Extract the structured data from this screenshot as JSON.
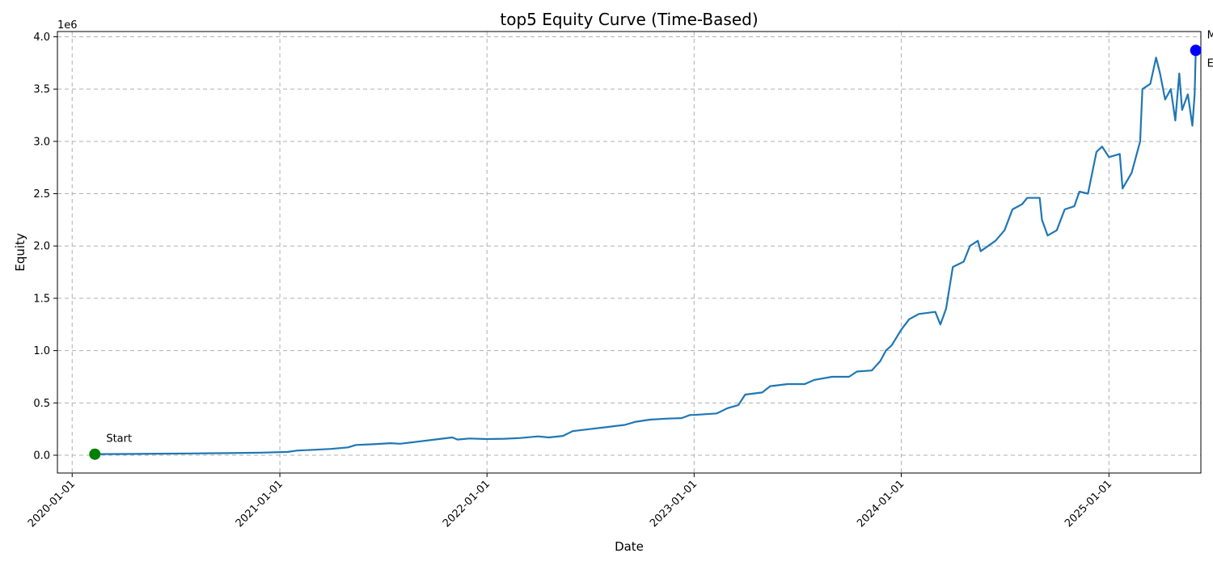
{
  "chart_data": {
    "type": "line",
    "title": "top5 Equity Curve (Time-Based)",
    "xlabel": "Date",
    "ylabel": "Equity",
    "y_offset_label": "1e6",
    "y_scale_factor": 1000000,
    "xlim": [
      "2019-12-06",
      "2025-06-12"
    ],
    "ylim": [
      -170000,
      4050000
    ],
    "grid": true,
    "x_ticks": [
      "2020-01-01",
      "2021-01-01",
      "2022-01-01",
      "2023-01-01",
      "2024-01-01",
      "2025-01-01"
    ],
    "y_ticks": [
      0.0,
      0.5,
      1.0,
      1.5,
      2.0,
      2.5,
      3.0,
      3.5,
      4.0
    ],
    "series": [
      {
        "color": "#1f77b4",
        "points": [
          [
            "2020-02-10",
            10000
          ],
          [
            "2020-04-01",
            12000
          ],
          [
            "2020-06-01",
            15000
          ],
          [
            "2020-08-01",
            17000
          ],
          [
            "2020-10-01",
            20000
          ],
          [
            "2020-12-01",
            25000
          ],
          [
            "2021-01-15",
            32000
          ],
          [
            "2021-02-01",
            45000
          ],
          [
            "2021-03-01",
            52000
          ],
          [
            "2021-04-01",
            60000
          ],
          [
            "2021-05-01",
            75000
          ],
          [
            "2021-05-15",
            98000
          ],
          [
            "2021-06-15",
            105000
          ],
          [
            "2021-07-15",
            115000
          ],
          [
            "2021-08-01",
            110000
          ],
          [
            "2021-09-01",
            130000
          ],
          [
            "2021-10-01",
            150000
          ],
          [
            "2021-11-01",
            170000
          ],
          [
            "2021-11-10",
            150000
          ],
          [
            "2021-12-01",
            160000
          ],
          [
            "2022-01-01",
            155000
          ],
          [
            "2022-02-01",
            158000
          ],
          [
            "2022-03-01",
            165000
          ],
          [
            "2022-04-01",
            180000
          ],
          [
            "2022-04-20",
            170000
          ],
          [
            "2022-05-15",
            185000
          ],
          [
            "2022-06-01",
            230000
          ],
          [
            "2022-07-01",
            250000
          ],
          [
            "2022-08-01",
            270000
          ],
          [
            "2022-09-01",
            290000
          ],
          [
            "2022-09-20",
            320000
          ],
          [
            "2022-10-15",
            340000
          ],
          [
            "2022-11-15",
            350000
          ],
          [
            "2022-12-10",
            355000
          ],
          [
            "2022-12-25",
            385000
          ],
          [
            "2023-01-01",
            385000
          ],
          [
            "2023-02-10",
            400000
          ],
          [
            "2023-03-01",
            450000
          ],
          [
            "2023-03-20",
            480000
          ],
          [
            "2023-04-01",
            580000
          ],
          [
            "2023-05-01",
            600000
          ],
          [
            "2023-05-15",
            660000
          ],
          [
            "2023-06-15",
            680000
          ],
          [
            "2023-07-15",
            680000
          ],
          [
            "2023-08-01",
            720000
          ],
          [
            "2023-09-01",
            750000
          ],
          [
            "2023-10-01",
            750000
          ],
          [
            "2023-10-15",
            800000
          ],
          [
            "2023-11-10",
            810000
          ],
          [
            "2023-11-25",
            900000
          ],
          [
            "2023-12-05",
            1000000
          ],
          [
            "2023-12-15",
            1050000
          ],
          [
            "2024-01-01",
            1200000
          ],
          [
            "2024-01-15",
            1300000
          ],
          [
            "2024-02-01",
            1350000
          ],
          [
            "2024-03-01",
            1370000
          ],
          [
            "2024-03-10",
            1250000
          ],
          [
            "2024-03-20",
            1400000
          ],
          [
            "2024-04-01",
            1800000
          ],
          [
            "2024-04-20",
            1850000
          ],
          [
            "2024-05-01",
            2000000
          ],
          [
            "2024-05-15",
            2050000
          ],
          [
            "2024-05-20",
            1950000
          ],
          [
            "2024-06-15",
            2050000
          ],
          [
            "2024-07-01",
            2150000
          ],
          [
            "2024-07-15",
            2350000
          ],
          [
            "2024-08-01",
            2400000
          ],
          [
            "2024-08-10",
            2460000
          ],
          [
            "2024-09-01",
            2460000
          ],
          [
            "2024-09-05",
            2250000
          ],
          [
            "2024-09-15",
            2100000
          ],
          [
            "2024-10-01",
            2150000
          ],
          [
            "2024-10-15",
            2350000
          ],
          [
            "2024-11-01",
            2380000
          ],
          [
            "2024-11-10",
            2520000
          ],
          [
            "2024-11-25",
            2500000
          ],
          [
            "2024-12-10",
            2900000
          ],
          [
            "2024-12-20",
            2950000
          ],
          [
            "2025-01-01",
            2850000
          ],
          [
            "2025-01-20",
            2880000
          ],
          [
            "2025-01-25",
            2550000
          ],
          [
            "2025-02-10",
            2700000
          ],
          [
            "2025-02-25",
            3000000
          ],
          [
            "2025-03-01",
            3500000
          ],
          [
            "2025-03-15",
            3550000
          ],
          [
            "2025-03-25",
            3800000
          ],
          [
            "2025-04-01",
            3650000
          ],
          [
            "2025-04-10",
            3400000
          ],
          [
            "2025-04-20",
            3500000
          ],
          [
            "2025-04-28",
            3200000
          ],
          [
            "2025-05-05",
            3650000
          ],
          [
            "2025-05-10",
            3300000
          ],
          [
            "2025-05-20",
            3450000
          ],
          [
            "2025-05-28",
            3150000
          ],
          [
            "2025-06-01",
            3450000
          ],
          [
            "2025-06-03",
            3870000
          ]
        ]
      }
    ],
    "markers": [
      {
        "label": "Start",
        "x": "2020-02-10",
        "y": 10000,
        "color": "#008000"
      },
      {
        "label": "Max",
        "x": "2025-06-03",
        "y": 3870000,
        "color": "#0000ff"
      }
    ],
    "annotations": [
      {
        "text": "Start",
        "x": "2020-02-10",
        "y": 10000
      },
      {
        "text": "Max",
        "x": "2025-06-03",
        "y": 3870000
      },
      {
        "text": "End",
        "x": "2025-06-03",
        "y": 3870000
      }
    ]
  }
}
